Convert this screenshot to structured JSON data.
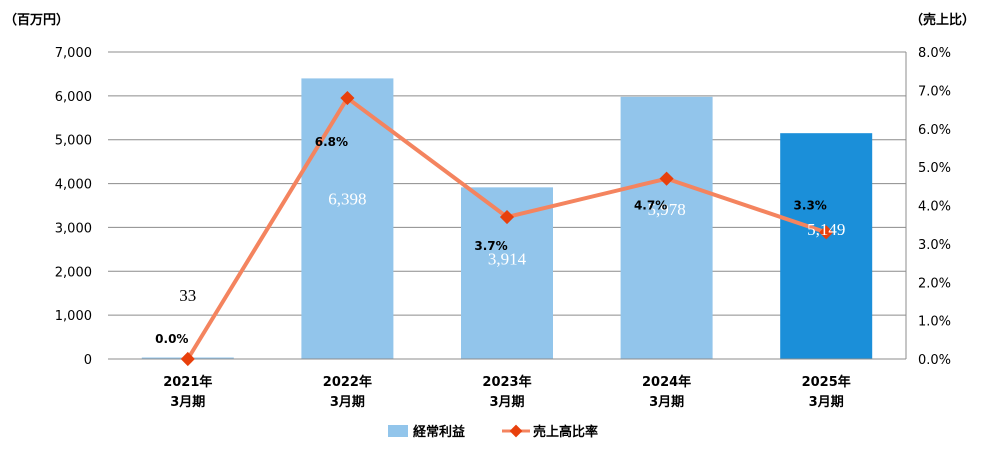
{
  "chart_data": {
    "type": "bar+line",
    "categories": [
      "2021年\n3月期",
      "2022年\n3月期",
      "2023年\n3月期",
      "2024年\n3月期",
      "2025年\n3月期"
    ],
    "bar_series": {
      "name": "経常利益",
      "values": [
        33,
        6398,
        3914,
        5978,
        5149
      ],
      "labels": [
        "33",
        "6,398",
        "3,914",
        "5,978",
        "5,149"
      ],
      "color": "#92C5EB",
      "highlight_color": "#1B8FD9",
      "highlight_index": 4
    },
    "line_series": {
      "name": "売上高比率",
      "values": [
        0.0,
        6.8,
        3.7,
        4.7,
        3.3
      ],
      "labels": [
        "0.0%",
        "6.8%",
        "3.7%",
        "4.7%",
        "3.3%"
      ],
      "color": "#F4845F",
      "marker_color": "#E8400C"
    },
    "y_left": {
      "unit": "（百万円）",
      "ylim": [
        0,
        7000
      ],
      "ticks": [
        "0",
        "1,000",
        "2,000",
        "3,000",
        "4,000",
        "5,000",
        "6,000",
        "7,000"
      ]
    },
    "y_right": {
      "unit": "（売上比）",
      "ylim": [
        0,
        8
      ],
      "ticks": [
        "0.0%",
        "1.0%",
        "2.0%",
        "3.0%",
        "4.0%",
        "5.0%",
        "6.0%",
        "7.0%",
        "8.0%"
      ]
    },
    "grid": true,
    "legend_position": "bottom"
  }
}
